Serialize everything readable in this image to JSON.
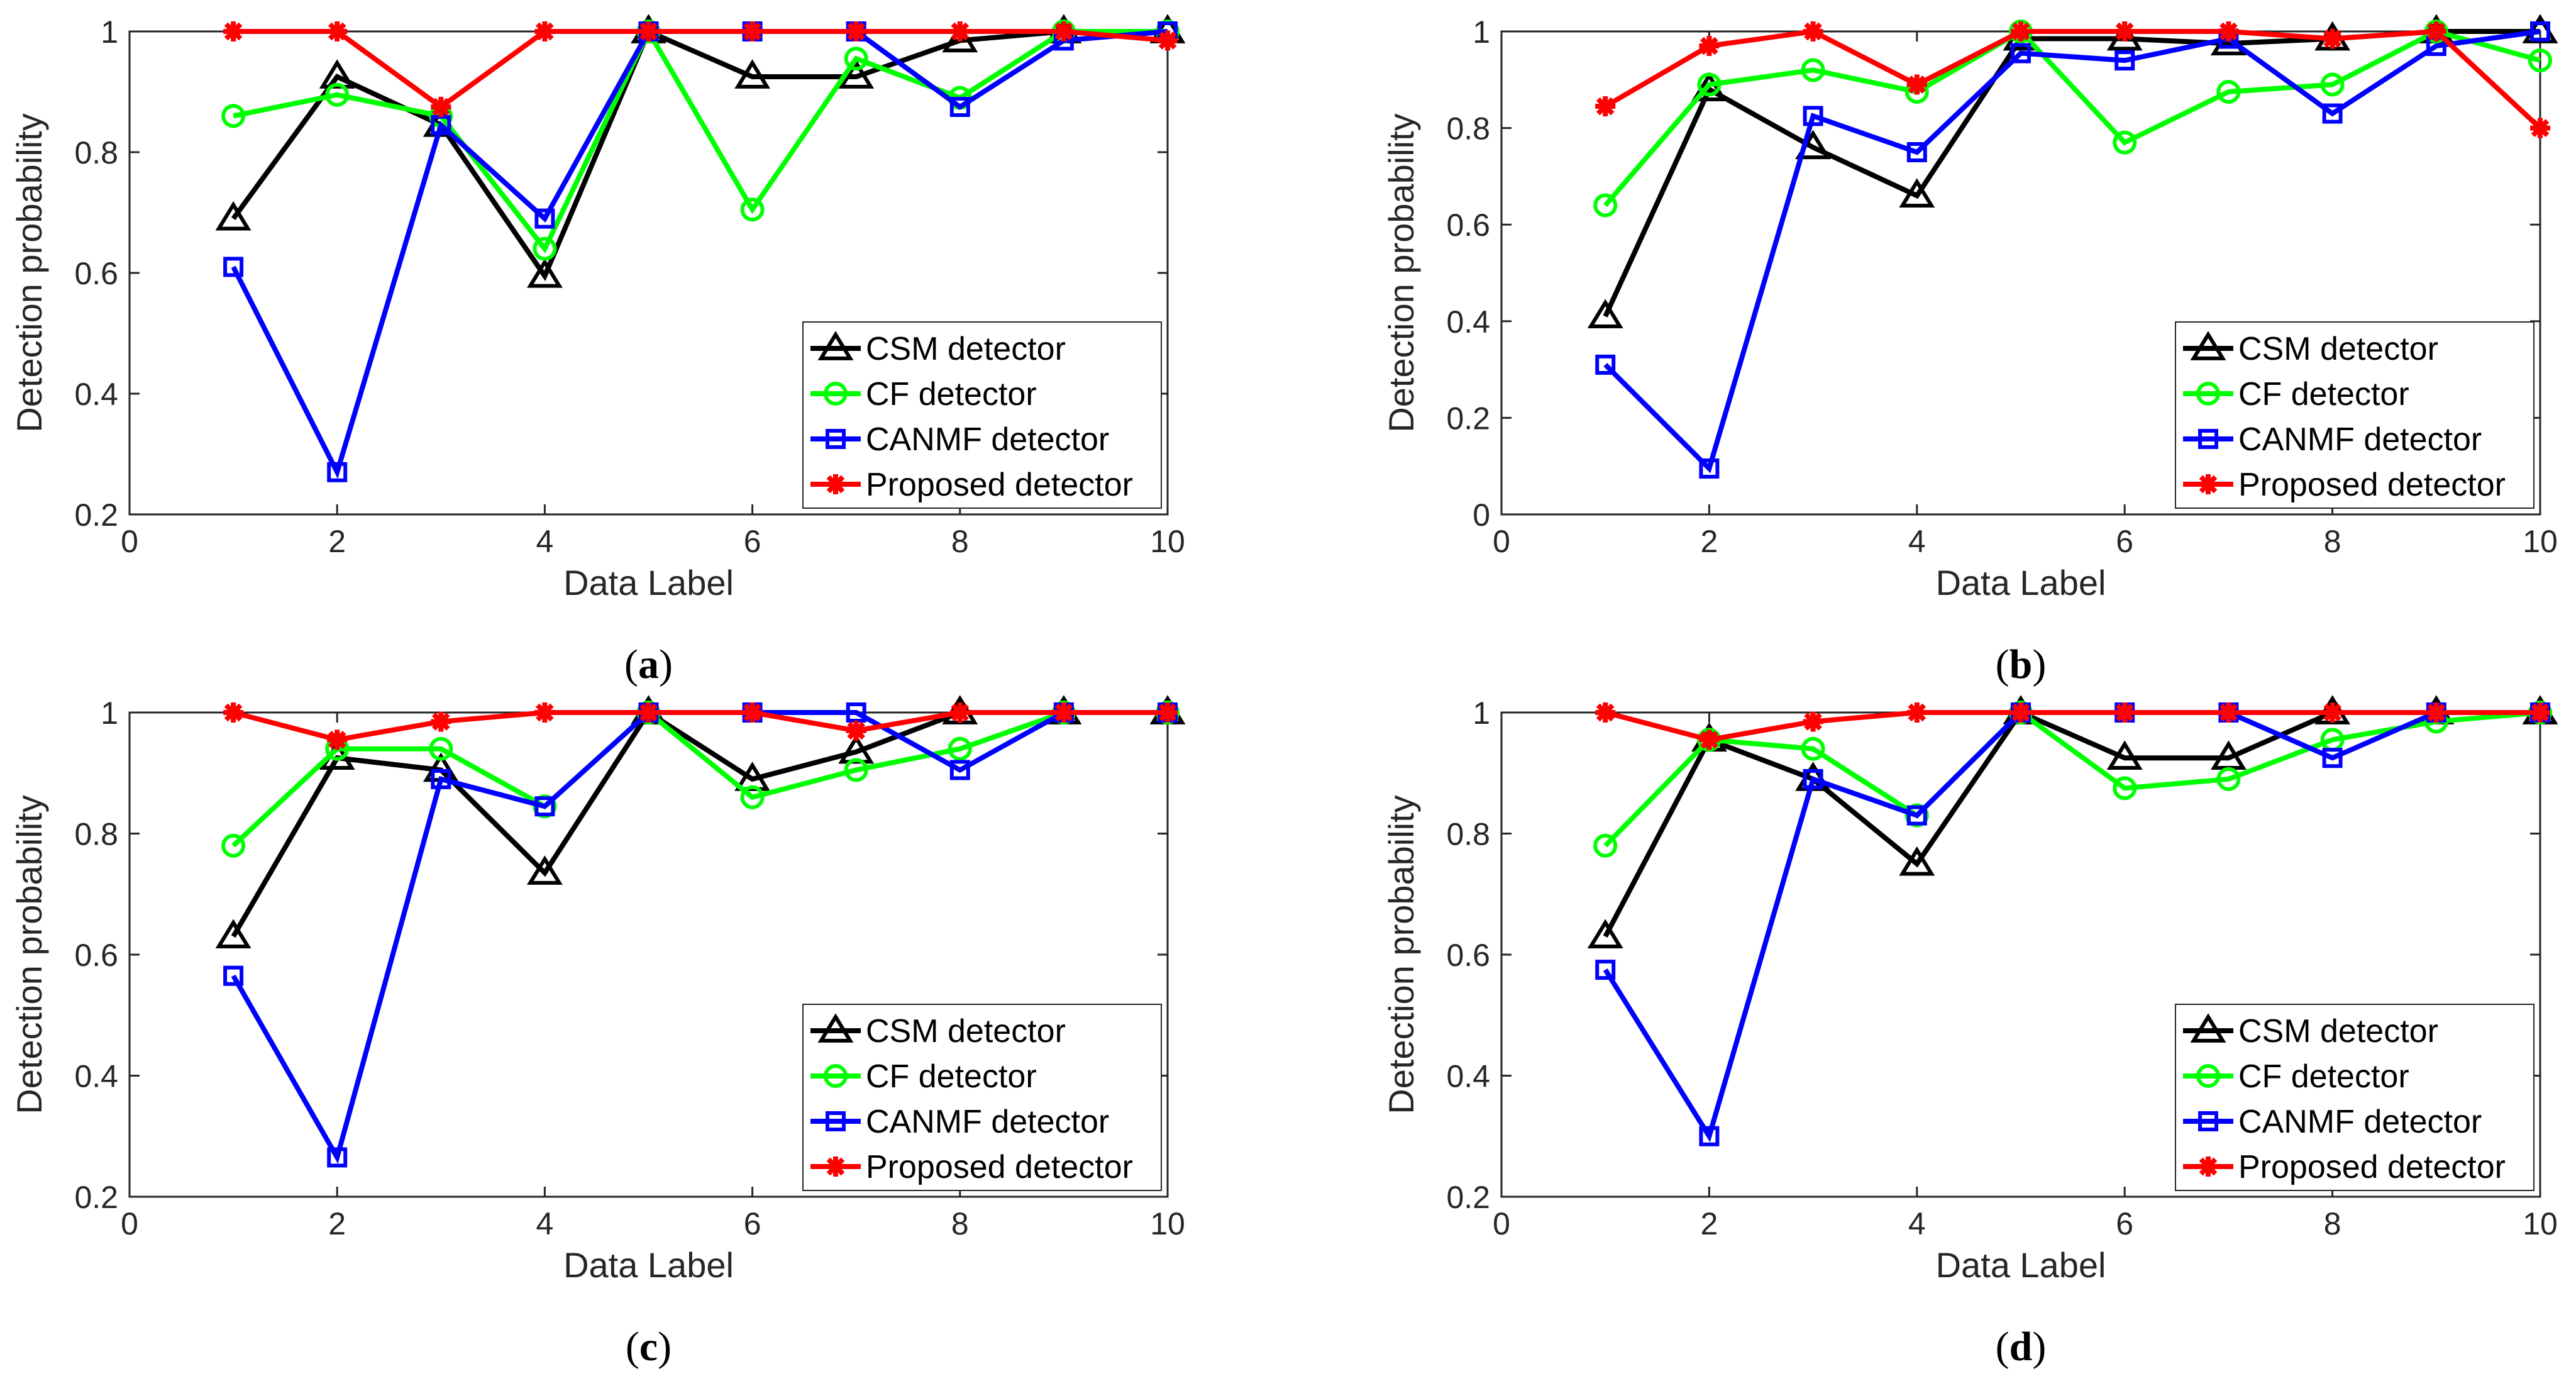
{
  "figure": {
    "panels": [
      {
        "id": "a",
        "caption_open": "(",
        "caption_letter": "a",
        "caption_close": ")"
      },
      {
        "id": "b",
        "caption_open": "(",
        "caption_letter": "b",
        "caption_close": ")"
      },
      {
        "id": "c",
        "caption_open": "(",
        "caption_letter": "c",
        "caption_close": ")"
      },
      {
        "id": "d",
        "caption_open": "(",
        "caption_letter": "d",
        "caption_close": ")"
      }
    ]
  },
  "colors": {
    "csm": "#000000",
    "cf": "#00ff00",
    "canmf": "#0000ff",
    "proposed": "#ff0000",
    "axis": "#262626"
  },
  "chart_data": [
    {
      "type": "line",
      "panel": "a",
      "xlabel": "Data Label",
      "ylabel": "Detection probability",
      "xlim": [
        0,
        10
      ],
      "ylim": [
        0.2,
        1
      ],
      "xticks": [
        0,
        2,
        4,
        6,
        8,
        10
      ],
      "yticks": [
        0.2,
        0.4,
        0.6,
        0.8,
        1
      ],
      "xtick_labels": [
        "0",
        "2",
        "4",
        "6",
        "8",
        "10"
      ],
      "ytick_labels": [
        "0.2",
        "0.4",
        "0.6",
        "0.8",
        "1"
      ],
      "legend_position": "bottom-right",
      "x": [
        1,
        2,
        3,
        4,
        5,
        6,
        7,
        8,
        9,
        10
      ],
      "series": [
        {
          "name": "CSM detector",
          "marker": "triangle",
          "color_key": "csm",
          "values": [
            0.69,
            0.925,
            0.845,
            0.595,
            1.0,
            0.925,
            0.925,
            0.985,
            1.0,
            1.0
          ]
        },
        {
          "name": "CF detector",
          "marker": "circle",
          "color_key": "cf",
          "values": [
            0.86,
            0.895,
            0.86,
            0.64,
            1.0,
            0.705,
            0.955,
            0.89,
            1.0,
            1.0
          ]
        },
        {
          "name": "CANMF detector",
          "marker": "square",
          "color_key": "canmf",
          "values": [
            0.61,
            0.27,
            0.845,
            0.69,
            1.0,
            1.0,
            1.0,
            0.875,
            0.985,
            1.0
          ]
        },
        {
          "name": "Proposed detector",
          "marker": "asterisk",
          "color_key": "proposed",
          "values": [
            1.0,
            1.0,
            0.875,
            1.0,
            1.0,
            1.0,
            1.0,
            1.0,
            1.0,
            0.985
          ]
        }
      ]
    },
    {
      "type": "line",
      "panel": "b",
      "xlabel": "Data Label",
      "ylabel": "Detection probability",
      "xlim": [
        0,
        10
      ],
      "ylim": [
        0,
        1
      ],
      "xticks": [
        0,
        2,
        4,
        6,
        8,
        10
      ],
      "yticks": [
        0,
        0.2,
        0.4,
        0.6,
        0.8,
        1
      ],
      "xtick_labels": [
        "0",
        "2",
        "4",
        "6",
        "8",
        "10"
      ],
      "ytick_labels": [
        "0",
        "0.2",
        "0.4",
        "0.6",
        "0.8",
        "1"
      ],
      "legend_position": "bottom-right",
      "x": [
        1,
        2,
        3,
        4,
        5,
        6,
        7,
        8,
        9,
        10
      ],
      "series": [
        {
          "name": "CSM detector",
          "marker": "triangle",
          "color_key": "csm",
          "values": [
            0.41,
            0.88,
            0.76,
            0.66,
            0.985,
            0.985,
            0.975,
            0.985,
            1.0,
            1.0
          ]
        },
        {
          "name": "CF detector",
          "marker": "circle",
          "color_key": "cf",
          "values": [
            0.64,
            0.89,
            0.92,
            0.875,
            1.0,
            0.77,
            0.875,
            0.89,
            1.0,
            0.94
          ]
        },
        {
          "name": "CANMF detector",
          "marker": "square",
          "color_key": "canmf",
          "values": [
            0.31,
            0.095,
            0.825,
            0.75,
            0.955,
            0.94,
            0.985,
            0.83,
            0.97,
            1.0
          ]
        },
        {
          "name": "Proposed detector",
          "marker": "asterisk",
          "color_key": "proposed",
          "values": [
            0.845,
            0.97,
            1.0,
            0.89,
            1.0,
            1.0,
            1.0,
            0.985,
            1.0,
            0.8
          ]
        }
      ]
    },
    {
      "type": "line",
      "panel": "c",
      "xlabel": "Data Label",
      "ylabel": "Detection probability",
      "xlim": [
        0,
        10
      ],
      "ylim": [
        0.2,
        1
      ],
      "xticks": [
        0,
        2,
        4,
        6,
        8,
        10
      ],
      "yticks": [
        0.2,
        0.4,
        0.6,
        0.8,
        1
      ],
      "xtick_labels": [
        "0",
        "2",
        "4",
        "6",
        "8",
        "10"
      ],
      "ytick_labels": [
        "0.2",
        "0.4",
        "0.6",
        "0.8",
        "1"
      ],
      "legend_position": "bottom-right",
      "x": [
        1,
        2,
        3,
        4,
        5,
        6,
        7,
        8,
        9,
        10
      ],
      "series": [
        {
          "name": "CSM detector",
          "marker": "triangle",
          "color_key": "csm",
          "values": [
            0.63,
            0.925,
            0.905,
            0.735,
            1.0,
            0.89,
            0.935,
            1.0,
            1.0,
            1.0
          ]
        },
        {
          "name": "CF detector",
          "marker": "circle",
          "color_key": "cf",
          "values": [
            0.78,
            0.94,
            0.94,
            0.845,
            1.0,
            0.86,
            0.905,
            0.94,
            1.0,
            1.0
          ]
        },
        {
          "name": "CANMF detector",
          "marker": "square",
          "color_key": "canmf",
          "values": [
            0.565,
            0.265,
            0.89,
            0.845,
            1.0,
            1.0,
            1.0,
            0.905,
            1.0,
            1.0
          ]
        },
        {
          "name": "Proposed detector",
          "marker": "asterisk",
          "color_key": "proposed",
          "values": [
            1.0,
            0.955,
            0.985,
            1.0,
            1.0,
            1.0,
            0.97,
            1.0,
            1.0,
            1.0
          ]
        }
      ]
    },
    {
      "type": "line",
      "panel": "d",
      "xlabel": "Data Label",
      "ylabel": "Detection probability",
      "xlim": [
        0,
        10
      ],
      "ylim": [
        0.2,
        1
      ],
      "xticks": [
        0,
        2,
        4,
        6,
        8,
        10
      ],
      "yticks": [
        0.2,
        0.4,
        0.6,
        0.8,
        1
      ],
      "xtick_labels": [
        "0",
        "2",
        "4",
        "6",
        "8",
        "10"
      ],
      "ytick_labels": [
        "0.2",
        "0.4",
        "0.6",
        "0.8",
        "1"
      ],
      "legend_position": "bottom-right",
      "x": [
        1,
        2,
        3,
        4,
        5,
        6,
        7,
        8,
        9,
        10
      ],
      "series": [
        {
          "name": "CSM detector",
          "marker": "triangle",
          "color_key": "csm",
          "values": [
            0.63,
            0.955,
            0.89,
            0.75,
            1.0,
            0.925,
            0.925,
            1.0,
            1.0,
            1.0
          ]
        },
        {
          "name": "CF detector",
          "marker": "circle",
          "color_key": "cf",
          "values": [
            0.78,
            0.955,
            0.94,
            0.83,
            1.0,
            0.875,
            0.89,
            0.955,
            0.985,
            1.0
          ]
        },
        {
          "name": "CANMF detector",
          "marker": "square",
          "color_key": "canmf",
          "values": [
            0.575,
            0.3,
            0.89,
            0.83,
            1.0,
            1.0,
            1.0,
            0.925,
            1.0,
            1.0
          ]
        },
        {
          "name": "Proposed detector",
          "marker": "asterisk",
          "color_key": "proposed",
          "values": [
            1.0,
            0.955,
            0.985,
            1.0,
            1.0,
            1.0,
            1.0,
            1.0,
            1.0,
            1.0
          ]
        }
      ]
    }
  ]
}
